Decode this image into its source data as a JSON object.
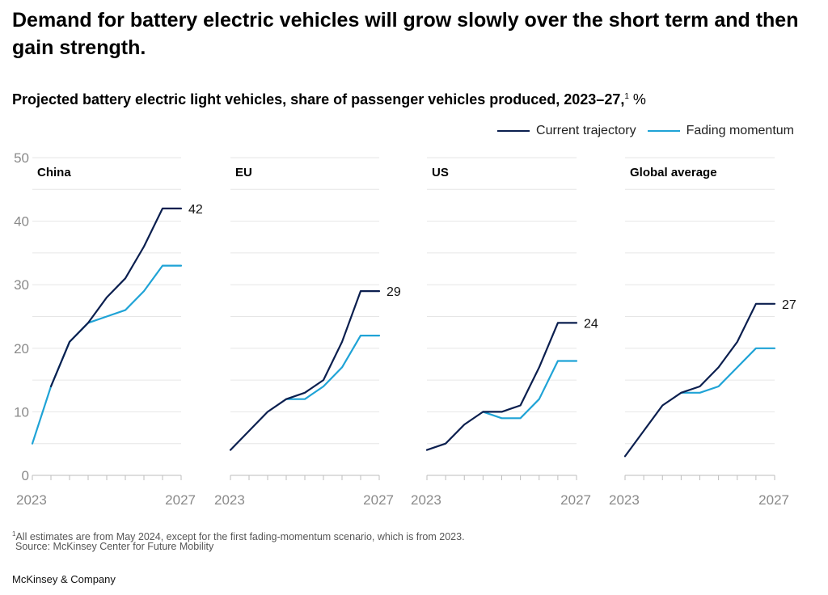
{
  "headline": "Demand for battery electric vehicles will grow slowly over the short term and then gain strength.",
  "subtitle": {
    "text": "Projected battery electric light vehicles, share of passenger vehicles produced, 2023–27,",
    "footnote_marker": "1",
    "unit": "%"
  },
  "legend": [
    {
      "label": "Current trajectory",
      "color": "#0b1f4f"
    },
    {
      "label": "Fading momentum",
      "color": "#1fa3d6"
    }
  ],
  "footnote": {
    "marker": "1",
    "text": "All estimates are from May 2024, except for the first fading-momentum scenario, which is from 2023."
  },
  "source": "Source: McKinsey Center for Future Mobility",
  "brand": "McKinsey & Company",
  "chart_data": {
    "type": "line",
    "title": "Projected battery electric light vehicles, share of passenger vehicles produced, 2023–27",
    "ylabel": "%",
    "ylim": [
      0,
      50
    ],
    "y_ticks": [
      "0",
      "10",
      "20",
      "30",
      "40",
      "50"
    ],
    "x_tick_labels": [
      "2023",
      "2027"
    ],
    "panels": [
      {
        "name": "China",
        "series": [
          {
            "name": "Current trajectory",
            "x": [
              2023.5,
              2024,
              2024.5,
              2025,
              2025.5,
              2026,
              2026.5,
              2027
            ],
            "values": [
              14,
              21,
              24,
              28,
              31,
              36,
              42,
              42
            ]
          },
          {
            "name": "Fading momentum",
            "x": [
              2023,
              2023.5,
              2024,
              2024.5,
              2025,
              2025.5,
              2026,
              2026.5,
              2027
            ],
            "values": [
              5,
              14,
              21,
              24,
              25,
              26,
              29,
              33,
              33
            ]
          }
        ],
        "end_label": "42"
      },
      {
        "name": "EU",
        "series": [
          {
            "name": "Current trajectory",
            "x": [
              2023,
              2023.5,
              2024,
              2024.5,
              2025,
              2025.5,
              2026,
              2026.5,
              2027
            ],
            "values": [
              4,
              7,
              10,
              12,
              13,
              15,
              21,
              29,
              29
            ]
          },
          {
            "name": "Fading momentum",
            "x": [
              2024.5,
              2025,
              2025.5,
              2026,
              2026.5,
              2027
            ],
            "values": [
              12,
              12,
              14,
              17,
              22,
              22
            ]
          }
        ],
        "end_label": "29"
      },
      {
        "name": "US",
        "series": [
          {
            "name": "Current trajectory",
            "x": [
              2023,
              2023.5,
              2024,
              2024.5,
              2025,
              2025.5,
              2026,
              2026.5,
              2027
            ],
            "values": [
              4,
              5,
              8,
              10,
              10,
              11,
              17,
              24,
              24
            ]
          },
          {
            "name": "Fading momentum",
            "x": [
              2024.5,
              2025,
              2025.5,
              2026,
              2026.5,
              2027
            ],
            "values": [
              10,
              9,
              9,
              12,
              18,
              18
            ]
          }
        ],
        "end_label": "24"
      },
      {
        "name": "Global average",
        "series": [
          {
            "name": "Current trajectory",
            "x": [
              2023,
              2023.5,
              2024,
              2024.5,
              2025,
              2025.5,
              2026,
              2026.5,
              2027
            ],
            "values": [
              3,
              7,
              11,
              13,
              14,
              17,
              21,
              27,
              27
            ]
          },
          {
            "name": "Fading momentum",
            "x": [
              2024.5,
              2025,
              2025.5,
              2026,
              2026.5,
              2027
            ],
            "values": [
              13,
              13,
              14,
              17,
              20,
              20
            ]
          }
        ],
        "end_label": "27"
      }
    ]
  }
}
